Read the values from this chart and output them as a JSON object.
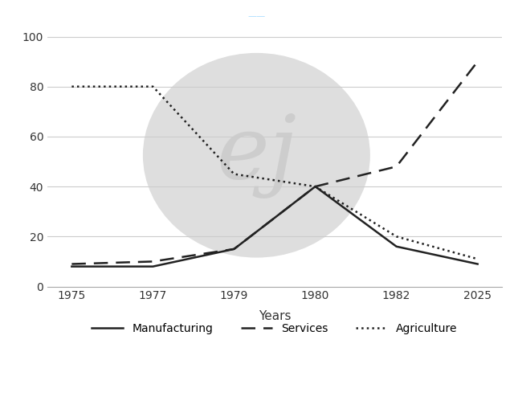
{
  "year_labels": [
    "1975",
    "1977",
    "1979",
    "1980",
    "1982",
    "2025"
  ],
  "x_positions": [
    0,
    1,
    2,
    3,
    4,
    5
  ],
  "manufacturing": [
    8,
    8,
    15,
    40,
    16,
    9
  ],
  "services": [
    9,
    10,
    15,
    40,
    48,
    90
  ],
  "agriculture": [
    80,
    80,
    45,
    40,
    20,
    11
  ],
  "xlabel": "Years",
  "ylim": [
    0,
    105
  ],
  "yticks": [
    0,
    20,
    40,
    60,
    80,
    100
  ],
  "legend_labels": [
    "Manufacturing",
    "Services",
    "Agriculture"
  ],
  "line_color": "#222222",
  "bg_color": "#ffffff",
  "grid_color": "#cccccc",
  "watermark_color": "#dedede",
  "xlabel_fontsize": 11,
  "tick_fontsize": 10,
  "legend_fontsize": 10,
  "title_fragment_color": "#aaddff"
}
